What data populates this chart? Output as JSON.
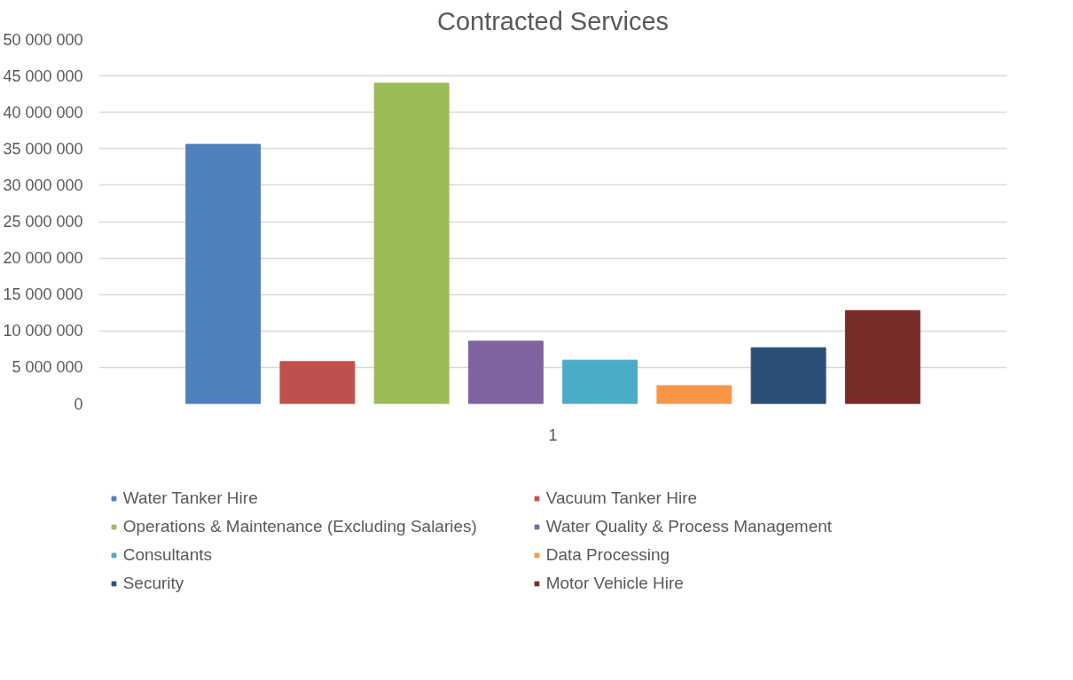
{
  "chart_data": {
    "type": "bar",
    "title": "Contracted Services",
    "categories": [
      "1"
    ],
    "series": [
      {
        "name": "Water Tanker Hire",
        "color": "#4f81bd",
        "values": [
          35600000
        ]
      },
      {
        "name": "Vacuum Tanker Hire",
        "color": "#c0504d",
        "values": [
          5800000
        ]
      },
      {
        "name": "Operations & Maintenance (Excluding Salaries)",
        "color": "#9bbb59",
        "values": [
          44000000
        ]
      },
      {
        "name": "Water Quality & Process Management",
        "color": "#8064a2",
        "values": [
          8600000
        ]
      },
      {
        "name": "Consultants",
        "color": "#4bacc6",
        "values": [
          6000000
        ]
      },
      {
        "name": "Data Processing",
        "color": "#f79646",
        "values": [
          2500000
        ]
      },
      {
        "name": "Security",
        "color": "#2c4f77",
        "values": [
          7700000
        ]
      },
      {
        "name": "Motor Vehicle Hire",
        "color": "#772c2a",
        "values": [
          12800000
        ]
      }
    ],
    "ylim": [
      0,
      50000000
    ],
    "yticks": [
      0,
      {
        "value": 5000000,
        "label": "5 000 000"
      },
      {
        "value": 10000000,
        "label": "10 000 000"
      },
      {
        "value": 15000000,
        "label": "15 000 000"
      },
      {
        "value": 20000000,
        "label": "20 000 000"
      },
      {
        "value": 25000000,
        "label": "25 000 000"
      },
      {
        "value": 30000000,
        "label": "30 000 000"
      },
      {
        "value": 35000000,
        "label": "35 000 000"
      },
      {
        "value": 40000000,
        "label": "40 000 000"
      },
      {
        "value": 45000000,
        "label": "45 000 000"
      },
      {
        "value": 50000000,
        "label": "50 000 000"
      }
    ],
    "grid": "y",
    "legend": "bottom"
  }
}
